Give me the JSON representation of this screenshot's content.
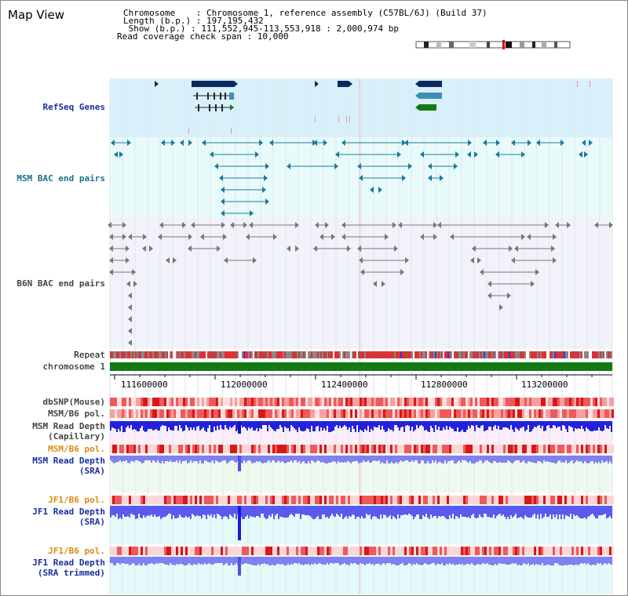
{
  "view": {
    "title": "Map View",
    "info_lines": [
      "Chromosome    : Chromosome 1, reference assembly (C57BL/6J) (Build 37)",
      "Length (b.p.) : 197,195,432",
      " Show (b.p.) : 111,552,945-113,553,918 : 2,000,974 bp",
      "Read coverage check span : 10,000"
    ]
  },
  "tracks": {
    "refseq": "RefSeq Genes",
    "msm_bac": "MSM BAC end pairs",
    "b6n_bac": "B6N BAC end pairs",
    "repeat": "Repeat",
    "chromosome": "chromosome 1",
    "dbsnp": "dbSNP(Mouse)",
    "msm_b6_pol": "MSM/B6 pol.",
    "msm_depth_cap_1": "MSM Read Depth",
    "msm_depth_cap_2": "(Capillary)",
    "msm_b6_pol2": "MSM/B6 pol.",
    "msm_depth_sra_1": "MSM Read Depth",
    "msm_depth_sra_2": "(SRA)",
    "jf1_b6_pol": "JF1/B6 pol.",
    "jf1_depth_sra_1": "JF1 Read Depth",
    "jf1_depth_sra_2": "(SRA)",
    "jf1_b6_pol2": "JF1/B6 pol.",
    "jf1_depth_trim_1": "JF1 Read Depth",
    "jf1_depth_trim_2": "(SRA trimmed)"
  },
  "axis": {
    "ticks": [
      "111600000",
      "112000000",
      "112400000",
      "112800000",
      "113200000"
    ]
  },
  "colors": {
    "refseq_bg": "#d8f0fa",
    "msm_bg": "#e8fafa",
    "b6n_bg": "#f2f2fa",
    "chrom": "#137a13",
    "gene_dark": "#0a2a5e",
    "gene_mid": "#3f8fb5",
    "gene_green": "#137a13",
    "depth_blue": "#2222dd",
    "depth_light": "#8080ee"
  }
}
